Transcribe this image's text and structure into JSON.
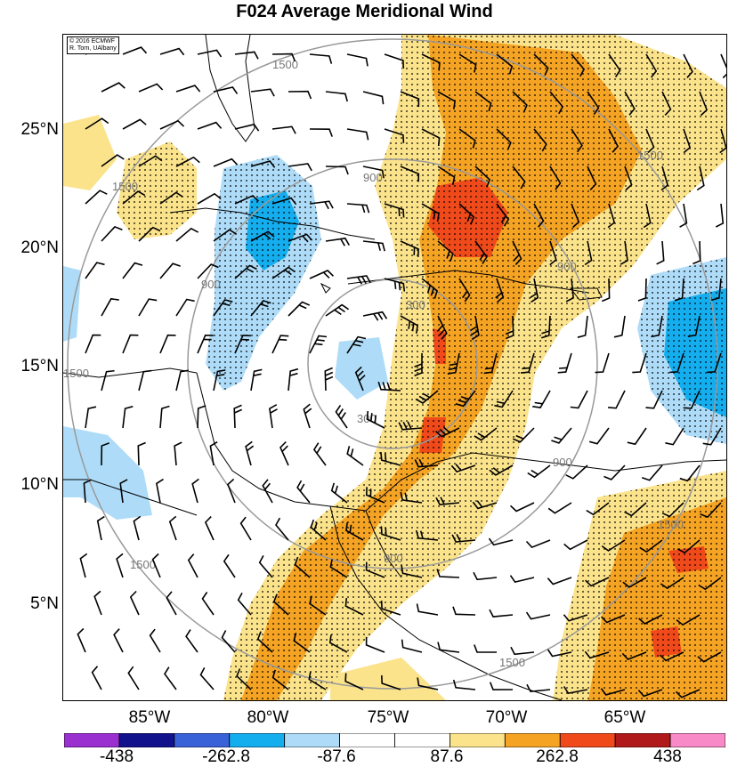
{
  "title": "F024 Average Meridional Wind",
  "credit_line1": "© 2016 ECMWF",
  "credit_line2": "R. Torn, UAlbany",
  "lat_labels": [
    "25°N",
    "20°N",
    "15°N",
    "10°N",
    "5°N"
  ],
  "lon_labels": [
    "85°W",
    "80°W",
    "75°W",
    "70°W",
    "65°W"
  ],
  "contour_labels": [
    "300",
    "300",
    "900",
    "900",
    "900",
    "900",
    "900",
    "1500",
    "1500",
    "1500",
    "1500",
    "1500",
    "1500",
    "1500"
  ],
  "colorbar": {
    "colors": [
      "#9b30d0",
      "#12128c",
      "#3a62d8",
      "#14aeee",
      "#aedcf8",
      "#ffffff",
      "#ffffff",
      "#fbe38c",
      "#f5a323",
      "#f0491a",
      "#b01a1a",
      "#f98ac8"
    ],
    "labels": [
      "-438",
      "-262.8",
      "-87.6",
      "87.6",
      "262.8",
      "438"
    ]
  },
  "colors": {
    "pos_light": "#fbe38c",
    "pos_mid": "#f5a323",
    "pos_strong": "#f0491a",
    "neg_light": "#aedcf8",
    "neg_mid": "#14aeee",
    "neg_strong": "#3a62d8",
    "range_ring": "#999999"
  }
}
